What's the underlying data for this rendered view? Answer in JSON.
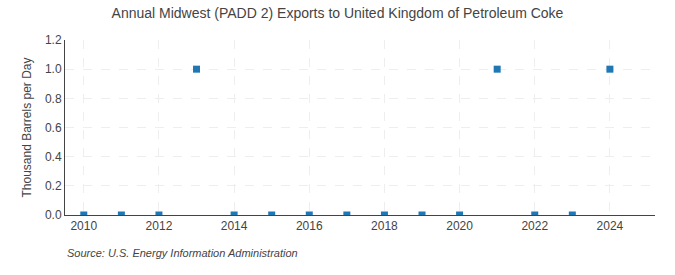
{
  "chart_data": {
    "type": "scatter",
    "title": "Annual Midwest (PADD 2) Exports to United Kingdom of Petroleum Coke",
    "ylabel": "Thousand Barrels per Day",
    "annotations": [
      "Source: U.S. Energy Information Administration"
    ],
    "x": [
      2010,
      2011,
      2012,
      2013,
      2014,
      2015,
      2016,
      2017,
      2018,
      2019,
      2020,
      2021,
      2022,
      2023,
      2024
    ],
    "values": [
      0,
      0,
      0,
      1.0,
      0,
      0,
      0,
      0,
      0,
      0,
      0,
      1.0,
      0,
      0,
      1.0
    ],
    "marker": "square",
    "xlim": [
      2009.5,
      2025.2
    ],
    "ylim": [
      0.0,
      1.2
    ],
    "xticks": [
      2010,
      2012,
      2014,
      2016,
      2018,
      2020,
      2022,
      2024
    ],
    "yticks": [
      {
        "value": 0,
        "label": "0.0"
      },
      0.2,
      0.4,
      0.6,
      0.8,
      {
        "value": 1,
        "label": "1.0"
      },
      1.2
    ],
    "grid": true
  }
}
